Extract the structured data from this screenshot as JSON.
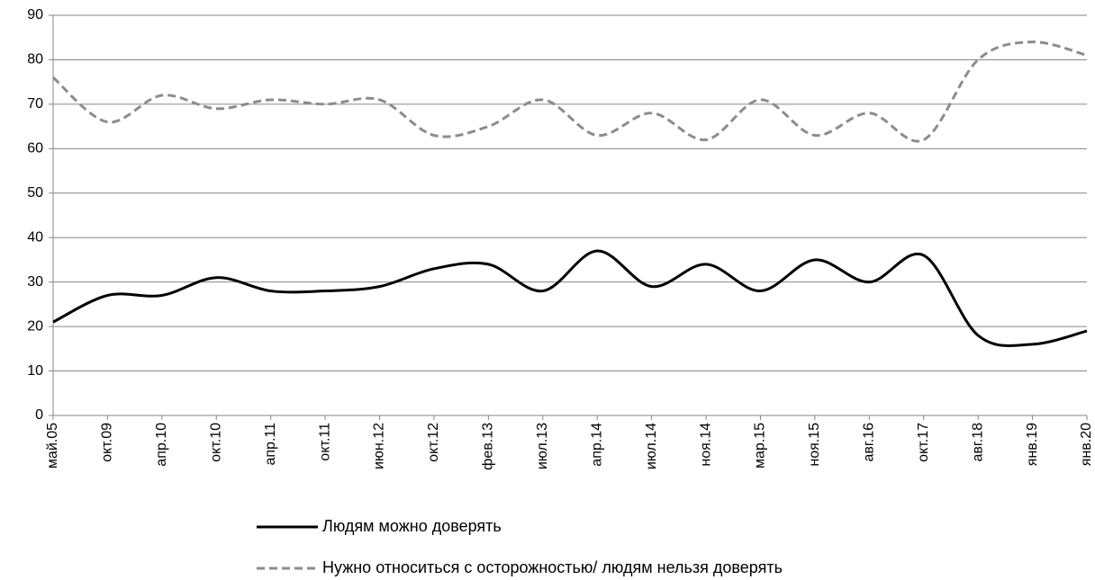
{
  "chart_data": {
    "type": "line",
    "categories": [
      "май.05",
      "окт.09",
      "апр.10",
      "окт.10",
      "апр.11",
      "окт.11",
      "июн.12",
      "окт.12",
      "фев.13",
      "июл.13",
      "апр.14",
      "июл.14",
      "ноя.14",
      "мар.15",
      "ноя.15",
      "авг.16",
      "окт.17",
      "авг.18",
      "янв.19",
      "янв.20"
    ],
    "series": [
      {
        "name": "Людям можно доверять",
        "color": "#000000",
        "dash": false,
        "values": [
          21,
          27,
          27,
          31,
          28,
          28,
          29,
          33,
          34,
          28,
          37,
          29,
          34,
          28,
          35,
          30,
          36,
          18,
          16,
          19
        ]
      },
      {
        "name": "Нужно относиться с осторожностью/ людям нельзя доверять",
        "color": "#8c8c8c",
        "dash": true,
        "values": [
          76,
          66,
          72,
          69,
          71,
          70,
          71,
          63,
          65,
          71,
          63,
          68,
          62,
          71,
          63,
          68,
          62,
          80,
          84,
          81
        ]
      }
    ],
    "ylim": [
      0,
      90
    ],
    "yticks": [
      0,
      10,
      20,
      30,
      40,
      50,
      60,
      70,
      80,
      90
    ],
    "grid": true,
    "smooth": true,
    "legend": "bottom"
  }
}
